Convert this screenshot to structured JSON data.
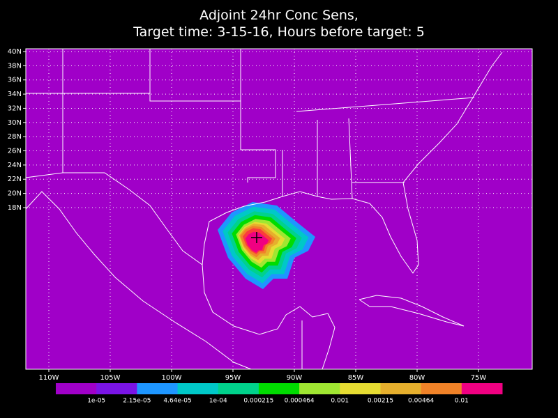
{
  "header": {
    "title_line1": "Adjoint 24hr Conc Sens,",
    "title_line2": "Target time: 3-15-16, Hours before target: 5"
  },
  "map": {
    "lat_ticks": [
      {
        "value": 40,
        "label": "40N"
      },
      {
        "value": 38,
        "label": "38N"
      },
      {
        "value": 36,
        "label": "36N"
      },
      {
        "value": 34,
        "label": "34N"
      },
      {
        "value": 32,
        "label": "32N"
      },
      {
        "value": 30,
        "label": "30N"
      },
      {
        "value": 28,
        "label": "28N"
      },
      {
        "value": 26,
        "label": "26N"
      },
      {
        "value": 24,
        "label": "24N"
      },
      {
        "value": 22,
        "label": "22N"
      },
      {
        "value": 20,
        "label": "20N"
      },
      {
        "value": 18,
        "label": "18N"
      }
    ],
    "lon_ticks": [
      {
        "value": -110,
        "label": "110W"
      },
      {
        "value": -105,
        "label": "105W"
      },
      {
        "value": -100,
        "label": "100W"
      },
      {
        "value": -95,
        "label": "95W"
      },
      {
        "value": -90,
        "label": "90W"
      },
      {
        "value": -85,
        "label": "85W"
      },
      {
        "value": -80,
        "label": "80W"
      },
      {
        "value": -75,
        "label": "75W"
      }
    ]
  },
  "colorbar": {
    "colors": [
      "#a000c8",
      "#7a14e6",
      "#1e96ff",
      "#00c8c8",
      "#00d28c",
      "#00dc00",
      "#a0e632",
      "#e6dc32",
      "#e6af2d",
      "#f08228",
      "#f00082"
    ],
    "labels": [
      "1e-05",
      "2.15e-05",
      "4.64e-05",
      "1e-04",
      "0.000215",
      "0.000464",
      "0.001",
      "0.00215",
      "0.00464",
      "0.01"
    ]
  }
}
